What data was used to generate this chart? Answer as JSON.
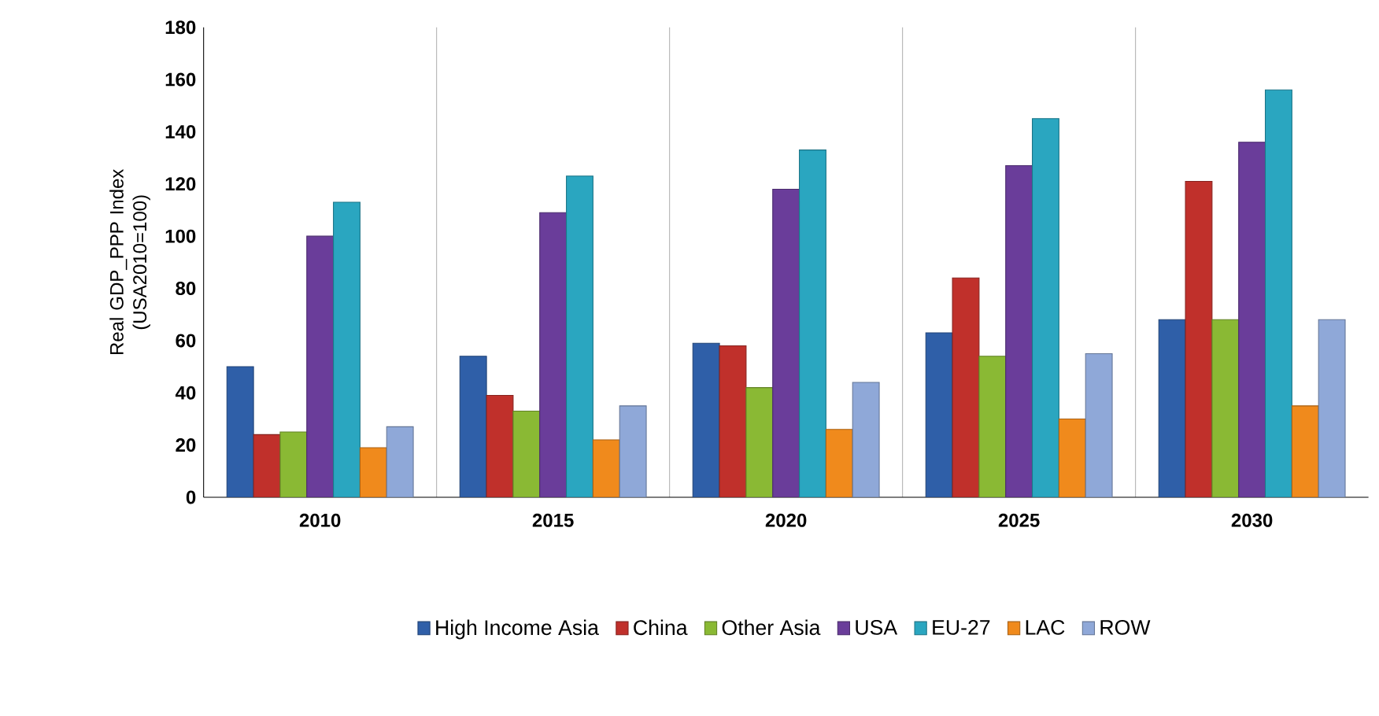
{
  "chart_data": {
    "type": "bar",
    "ylabel": "Real GDP_PPP Index (USA2010=100)",
    "categories": [
      "2010",
      "2015",
      "2020",
      "2025",
      "2030"
    ],
    "series": [
      {
        "name": "High Income Asia",
        "color": "#2f5fa8",
        "values": [
          50,
          54,
          59,
          63,
          68
        ]
      },
      {
        "name": "China",
        "color": "#c0302b",
        "values": [
          24,
          39,
          58,
          84,
          121
        ]
      },
      {
        "name": "Other Asia",
        "color": "#8ab934",
        "values": [
          25,
          33,
          42,
          54,
          68
        ]
      },
      {
        "name": "USA",
        "color": "#6a3d9a",
        "values": [
          100,
          109,
          118,
          127,
          136
        ]
      },
      {
        "name": "EU-27",
        "color": "#2aa6c0",
        "values": [
          113,
          123,
          133,
          145,
          156
        ]
      },
      {
        "name": "LAC",
        "color": "#f08a1c",
        "values": [
          19,
          22,
          26,
          30,
          35
        ]
      },
      {
        "name": "ROW",
        "color": "#8fa8d8",
        "values": [
          27,
          35,
          44,
          55,
          68
        ]
      }
    ],
    "ylim": [
      0,
      180
    ],
    "yticks": [
      0,
      20,
      40,
      60,
      80,
      100,
      120,
      140,
      160,
      180
    ],
    "grid": "x",
    "legend": "bottom"
  }
}
